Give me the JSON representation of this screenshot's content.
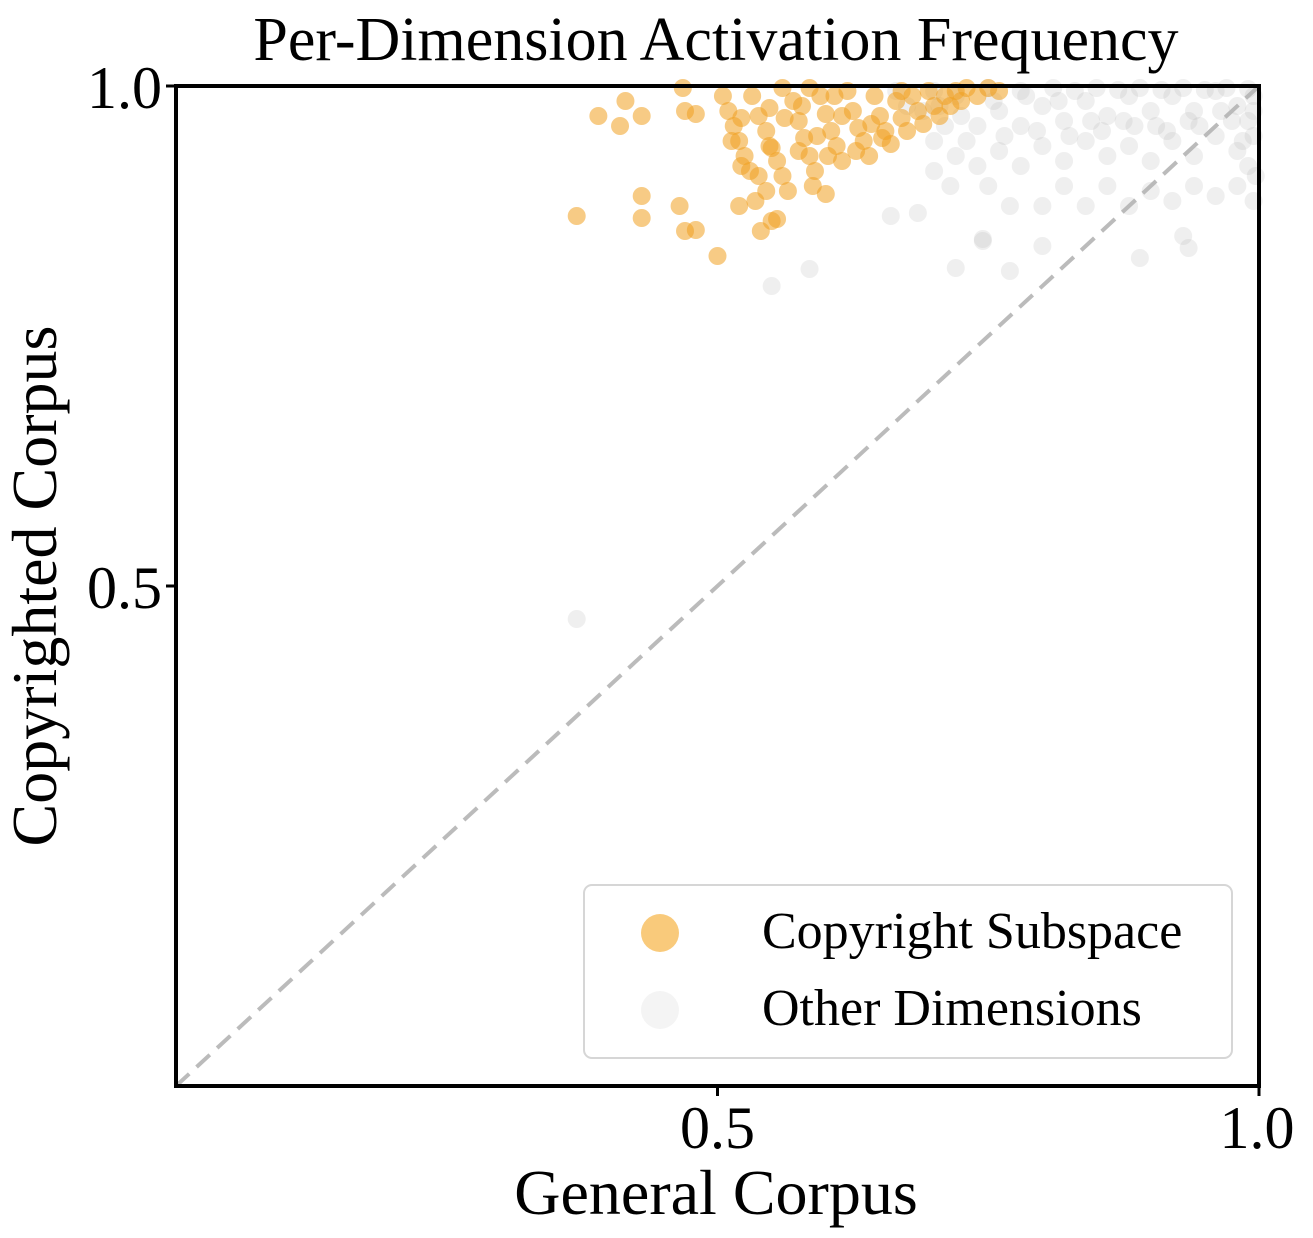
{
  "chart_data": {
    "type": "scatter",
    "title": "Per-Dimension Activation Frequency",
    "xlabel": "General Corpus",
    "ylabel": "Copyrighted Corpus",
    "xlim": [
      0.0,
      1.0
    ],
    "ylim": [
      0.0,
      1.0
    ],
    "xticks": [
      0.5,
      1.0
    ],
    "xtick_labels": [
      "0.5",
      "1.0"
    ],
    "yticks": [
      0.5,
      1.0
    ],
    "ytick_labels": [
      "0.5",
      "1.0"
    ],
    "grid": false,
    "reference_line": {
      "type": "diagonal",
      "style": "dashed",
      "color": "#bbbbbb"
    },
    "legend": {
      "placement": "bottom-right",
      "entries": [
        {
          "label": "Copyright Subspace",
          "color": "#f5a623"
        },
        {
          "label": "Other Dimensions",
          "color": "#d9d9d9"
        }
      ]
    },
    "series": [
      {
        "name": "Copyright Subspace",
        "color": "#f0a020",
        "opacity": 0.55,
        "points": [
          [
            0.37,
            0.87
          ],
          [
            0.39,
            0.97
          ],
          [
            0.41,
            0.96
          ],
          [
            0.415,
            0.985
          ],
          [
            0.43,
            0.97
          ],
          [
            0.43,
            0.89
          ],
          [
            0.43,
            0.868
          ],
          [
            0.465,
            0.88
          ],
          [
            0.47,
            0.855
          ],
          [
            0.48,
            0.856
          ],
          [
            0.468,
            0.998
          ],
          [
            0.47,
            0.975
          ],
          [
            0.48,
            0.972
          ],
          [
            0.5,
            0.83
          ],
          [
            0.52,
            0.88
          ],
          [
            0.535,
            0.885
          ],
          [
            0.545,
            0.895
          ],
          [
            0.55,
            0.865
          ],
          [
            0.555,
            0.867
          ],
          [
            0.54,
            0.855
          ],
          [
            0.505,
            0.99
          ],
          [
            0.51,
            0.975
          ],
          [
            0.515,
            0.96
          ],
          [
            0.52,
            0.945
          ],
          [
            0.525,
            0.93
          ],
          [
            0.53,
            0.915
          ],
          [
            0.532,
            0.99
          ],
          [
            0.538,
            0.97
          ],
          [
            0.545,
            0.955
          ],
          [
            0.55,
            0.938
          ],
          [
            0.555,
            0.925
          ],
          [
            0.56,
            0.91
          ],
          [
            0.565,
            0.895
          ],
          [
            0.57,
            0.985
          ],
          [
            0.575,
            0.965
          ],
          [
            0.58,
            0.948
          ],
          [
            0.585,
            0.93
          ],
          [
            0.59,
            0.915
          ],
          [
            0.595,
            0.99
          ],
          [
            0.6,
            0.972
          ],
          [
            0.605,
            0.955
          ],
          [
            0.61,
            0.94
          ],
          [
            0.615,
            0.925
          ],
          [
            0.62,
            0.995
          ],
          [
            0.625,
            0.975
          ],
          [
            0.63,
            0.958
          ],
          [
            0.635,
            0.945
          ],
          [
            0.64,
            0.93
          ],
          [
            0.645,
            0.99
          ],
          [
            0.65,
            0.97
          ],
          [
            0.655,
            0.955
          ],
          [
            0.66,
            0.942
          ],
          [
            0.665,
            0.985
          ],
          [
            0.67,
            0.968
          ],
          [
            0.675,
            0.955
          ],
          [
            0.68,
            0.99
          ],
          [
            0.685,
            0.975
          ],
          [
            0.69,
            0.962
          ],
          [
            0.695,
            0.995
          ],
          [
            0.7,
            0.98
          ],
          [
            0.705,
            0.97
          ],
          [
            0.71,
            0.99
          ],
          [
            0.715,
            0.98
          ],
          [
            0.72,
            0.995
          ],
          [
            0.725,
            0.985
          ],
          [
            0.73,
            0.998
          ],
          [
            0.74,
            0.99
          ],
          [
            0.75,
            0.998
          ],
          [
            0.76,
            0.995
          ],
          [
            0.513,
            0.945
          ],
          [
            0.522,
            0.968
          ],
          [
            0.548,
            0.978
          ],
          [
            0.562,
            0.968
          ],
          [
            0.578,
            0.98
          ],
          [
            0.592,
            0.95
          ],
          [
            0.608,
            0.99
          ],
          [
            0.628,
            0.935
          ],
          [
            0.642,
            0.962
          ],
          [
            0.652,
            0.948
          ],
          [
            0.588,
            0.9
          ],
          [
            0.6,
            0.892
          ],
          [
            0.548,
            0.94
          ],
          [
            0.575,
            0.935
          ],
          [
            0.602,
            0.93
          ],
          [
            0.522,
            0.92
          ],
          [
            0.538,
            0.91
          ],
          [
            0.615,
            0.97
          ],
          [
            0.56,
            0.998
          ],
          [
            0.585,
            0.998
          ],
          [
            0.67,
            0.995
          ]
        ]
      },
      {
        "name": "Other Dimensions",
        "color": "#b8b8b8",
        "opacity": 0.22,
        "points": [
          [
            0.37,
            0.467
          ],
          [
            0.55,
            0.8
          ],
          [
            0.585,
            0.817
          ],
          [
            0.66,
            0.87
          ],
          [
            0.685,
            0.873
          ],
          [
            0.72,
            0.818
          ],
          [
            0.77,
            0.815
          ],
          [
            0.745,
            0.845
          ],
          [
            0.745,
            0.847
          ],
          [
            0.93,
            0.85
          ],
          [
            0.935,
            0.838
          ],
          [
            0.89,
            0.828
          ],
          [
            0.8,
            0.84
          ],
          [
            0.75,
            0.9
          ],
          [
            0.77,
            0.88
          ],
          [
            0.8,
            0.88
          ],
          [
            0.82,
            0.9
          ],
          [
            0.84,
            0.88
          ],
          [
            0.86,
            0.9
          ],
          [
            0.88,
            0.88
          ],
          [
            0.9,
            0.895
          ],
          [
            0.92,
            0.885
          ],
          [
            0.94,
            0.9
          ],
          [
            0.96,
            0.89
          ],
          [
            0.98,
            0.9
          ],
          [
            0.995,
            0.885
          ],
          [
            0.7,
            0.915
          ],
          [
            0.72,
            0.93
          ],
          [
            0.74,
            0.92
          ],
          [
            0.76,
            0.935
          ],
          [
            0.78,
            0.92
          ],
          [
            0.8,
            0.94
          ],
          [
            0.82,
            0.925
          ],
          [
            0.84,
            0.945
          ],
          [
            0.86,
            0.93
          ],
          [
            0.88,
            0.94
          ],
          [
            0.9,
            0.925
          ],
          [
            0.92,
            0.945
          ],
          [
            0.94,
            0.93
          ],
          [
            0.96,
            0.95
          ],
          [
            0.98,
            0.935
          ],
          [
            0.995,
            0.95
          ],
          [
            0.74,
            0.96
          ],
          [
            0.76,
            0.975
          ],
          [
            0.78,
            0.96
          ],
          [
            0.8,
            0.98
          ],
          [
            0.82,
            0.965
          ],
          [
            0.84,
            0.985
          ],
          [
            0.86,
            0.97
          ],
          [
            0.88,
            0.99
          ],
          [
            0.9,
            0.975
          ],
          [
            0.92,
            0.99
          ],
          [
            0.94,
            0.975
          ],
          [
            0.96,
            0.995
          ],
          [
            0.98,
            0.98
          ],
          [
            0.995,
            0.99
          ],
          [
            0.7,
            0.995
          ],
          [
            0.72,
            0.99
          ],
          [
            0.75,
            0.998
          ],
          [
            0.78,
            0.995
          ],
          [
            0.81,
            0.998
          ],
          [
            0.83,
            0.995
          ],
          [
            0.85,
            0.998
          ],
          [
            0.87,
            0.996
          ],
          [
            0.89,
            0.998
          ],
          [
            0.91,
            0.996
          ],
          [
            0.93,
            0.998
          ],
          [
            0.95,
            0.996
          ],
          [
            0.97,
            0.998
          ],
          [
            0.99,
            0.997
          ],
          [
            0.765,
            0.95
          ],
          [
            0.795,
            0.955
          ],
          [
            0.825,
            0.95
          ],
          [
            0.855,
            0.955
          ],
          [
            0.885,
            0.96
          ],
          [
            0.915,
            0.955
          ],
          [
            0.945,
            0.96
          ],
          [
            0.975,
            0.965
          ],
          [
            0.99,
            0.965
          ],
          [
            0.995,
            0.975
          ],
          [
            0.99,
            0.92
          ],
          [
            0.997,
            0.91
          ],
          [
            0.985,
            0.945
          ],
          [
            0.7,
            0.945
          ],
          [
            0.71,
            0.96
          ],
          [
            0.73,
            0.945
          ],
          [
            0.69,
            0.975
          ],
          [
            0.705,
            0.98
          ],
          [
            0.725,
            0.97
          ],
          [
            0.755,
            0.985
          ],
          [
            0.785,
            0.99
          ],
          [
            0.815,
            0.985
          ],
          [
            0.845,
            0.965
          ],
          [
            0.875,
            0.965
          ],
          [
            0.905,
            0.96
          ],
          [
            0.935,
            0.965
          ],
          [
            0.965,
            0.975
          ],
          [
            0.675,
            0.98
          ],
          [
            0.665,
            0.995
          ],
          [
            0.715,
            0.9
          ]
        ]
      }
    ]
  }
}
